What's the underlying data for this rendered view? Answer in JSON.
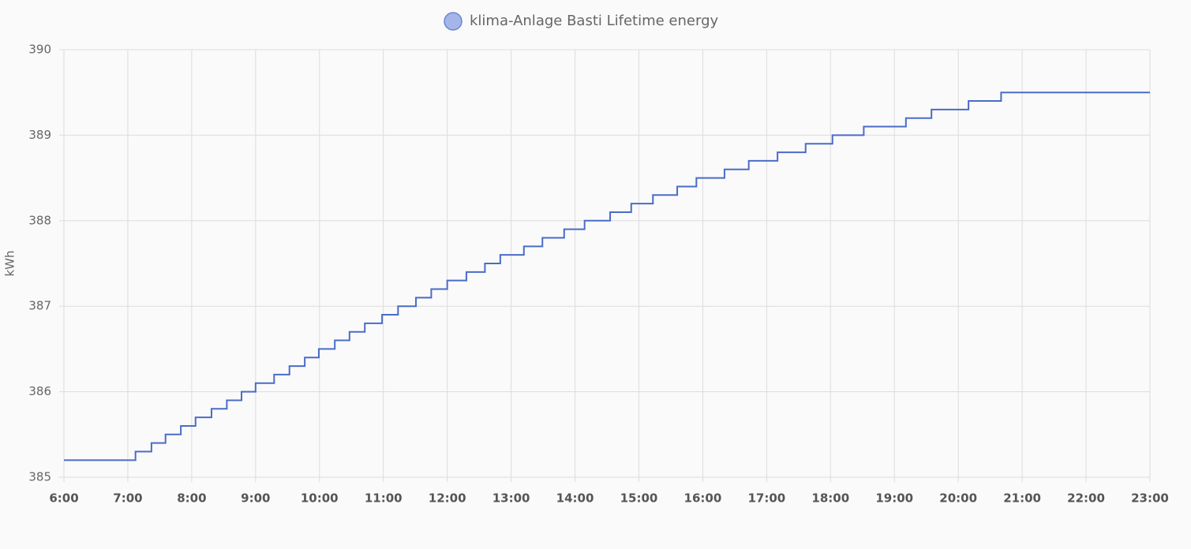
{
  "chart_data": {
    "type": "line",
    "step": true,
    "legend_label": "klima-Anlage Basti Lifetime energy",
    "y_label": "kWh",
    "color": "#4a6cc8",
    "x": [
      6,
      7.12,
      7.37,
      7.59,
      7.83,
      8.06,
      8.31,
      8.55,
      8.78,
      9.0,
      9.29,
      9.53,
      9.77,
      9.99,
      10.24,
      10.47,
      10.71,
      10.98,
      11.23,
      11.51,
      11.75,
      12.0,
      12.3,
      12.59,
      12.83,
      13.2,
      13.49,
      13.83,
      14.15,
      14.55,
      14.88,
      15.22,
      15.6,
      15.9,
      16.34,
      16.72,
      17.17,
      17.61,
      18.03,
      18.52,
      19.18,
      19.58,
      20.16,
      20.67,
      23
    ],
    "values": [
      385.2,
      385.3,
      385.4,
      385.5,
      385.6,
      385.7,
      385.8,
      385.9,
      386.0,
      386.1,
      386.2,
      386.3,
      386.4,
      386.5,
      386.6,
      386.7,
      386.8,
      386.9,
      387.0,
      387.1,
      387.2,
      387.3,
      387.4,
      387.5,
      387.6,
      387.7,
      387.8,
      387.9,
      388.0,
      388.1,
      388.2,
      388.3,
      388.4,
      388.5,
      388.6,
      388.7,
      388.8,
      388.9,
      389.0,
      389.1,
      389.2,
      389.3,
      389.4,
      389.5,
      389.5
    ],
    "xlim": [
      6,
      23
    ],
    "xticks": [
      {
        "value": 6,
        "label": "6:00"
      },
      {
        "value": 7,
        "label": "7:00"
      },
      {
        "value": 8,
        "label": "8:00"
      },
      {
        "value": 9,
        "label": "9:00"
      },
      {
        "value": 10,
        "label": "10:00"
      },
      {
        "value": 11,
        "label": "11:00"
      },
      {
        "value": 12,
        "label": "12:00"
      },
      {
        "value": 13,
        "label": "13:00"
      },
      {
        "value": 14,
        "label": "14:00"
      },
      {
        "value": 15,
        "label": "15:00"
      },
      {
        "value": 16,
        "label": "16:00"
      },
      {
        "value": 17,
        "label": "17:00"
      },
      {
        "value": 18,
        "label": "18:00"
      },
      {
        "value": 19,
        "label": "19:00"
      },
      {
        "value": 20,
        "label": "20:00"
      },
      {
        "value": 21,
        "label": "21:00"
      },
      {
        "value": 22,
        "label": "22:00"
      },
      {
        "value": 23,
        "label": "23:00"
      }
    ],
    "ylim": [
      385,
      390
    ],
    "yticks": [
      385,
      386,
      387,
      388,
      389,
      390
    ],
    "grid": true
  }
}
